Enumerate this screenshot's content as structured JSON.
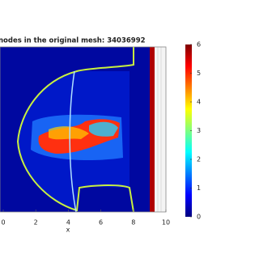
{
  "chart_data": {
    "type": "heatmap",
    "title": "nodes in the original mesh: 34036992",
    "xlabel": "x",
    "xlim": [
      0,
      10
    ],
    "xticks": [
      0,
      2,
      4,
      6,
      8,
      10
    ],
    "colormap": "jet",
    "clim": [
      0,
      6
    ],
    "cticks": [
      0,
      1,
      2,
      3,
      4,
      5,
      6
    ]
  }
}
